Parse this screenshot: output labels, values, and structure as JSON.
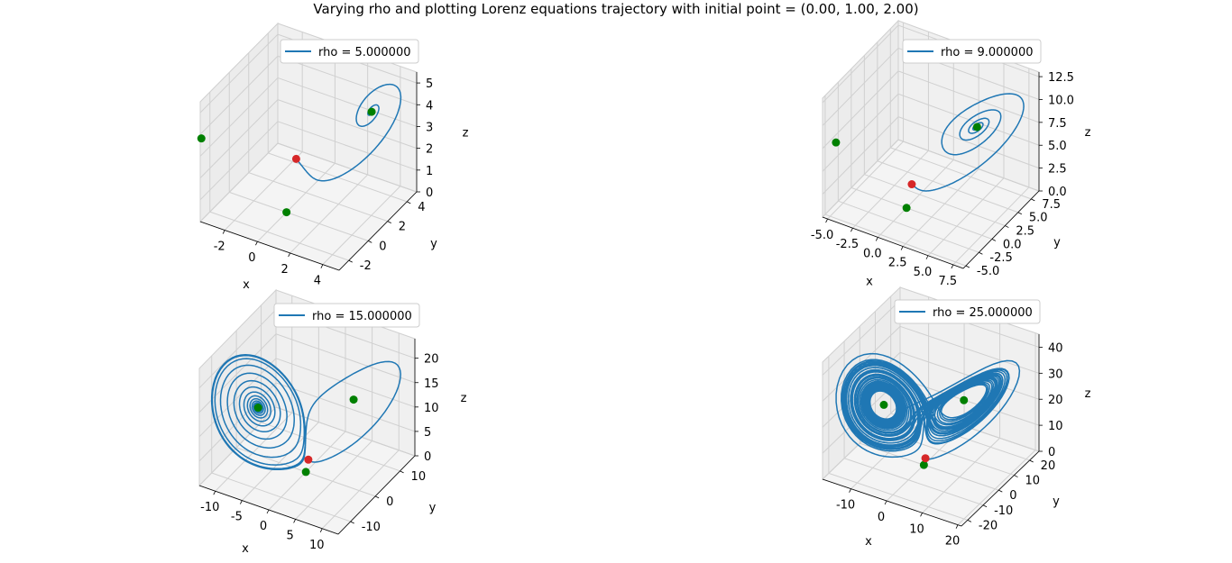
{
  "figure": {
    "title": "Varying rho and plotting Lorenz equations trajectory with initial point = (0.00, 1.00, 2.00)"
  },
  "colors": {
    "trajectory": "#1f77b4",
    "initial_point": "#d62728",
    "fixed_point": "#008000",
    "pane": "#f2f2f2",
    "grid": "#d0d0d0"
  },
  "chart_data": [
    {
      "type": "line",
      "projection": "3d",
      "legend": "rho = 5.000000",
      "legend_position": "top",
      "rho": 5,
      "xlabel": "x",
      "ylabel": "y",
      "zlabel": "z",
      "xlim": [
        -3.5,
        5
      ],
      "ylim": [
        -3,
        5
      ],
      "zlim": [
        0,
        5.5
      ],
      "xticks": [
        -2,
        0,
        2,
        4
      ],
      "yticks": [
        -2,
        0,
        2,
        4
      ],
      "zticks": [
        0,
        1,
        2,
        3,
        4,
        5
      ],
      "initial_point": [
        0,
        1,
        2
      ],
      "fixed_points": [
        [
          0,
          0,
          0
        ],
        [
          -3.27,
          -3.27,
          4
        ],
        [
          3.27,
          3.27,
          4
        ]
      ]
    },
    {
      "type": "line",
      "projection": "3d",
      "legend": "rho = 9.000000",
      "legend_position": "top",
      "rho": 9,
      "xlabel": "x",
      "ylabel": "y",
      "zlabel": "z",
      "xlim": [
        -5.5,
        8.5
      ],
      "ylim": [
        -5.5,
        9
      ],
      "zlim": [
        0,
        13
      ],
      "xticks": [
        "-5.0",
        "-2.5",
        "0.0",
        "2.5",
        "5.0",
        "7.5"
      ],
      "yticks": [
        "-5.0",
        "-2.5",
        "0.0",
        "2.5",
        "5.0",
        "7.5"
      ],
      "zticks": [
        "0.0",
        "2.5",
        "5.0",
        "7.5",
        "10.0",
        "12.5"
      ],
      "initial_point": [
        0,
        1,
        2
      ],
      "fixed_points": [
        [
          0,
          0,
          0
        ],
        [
          -4.62,
          -4.62,
          8
        ],
        [
          4.62,
          4.62,
          8
        ]
      ]
    },
    {
      "type": "line",
      "projection": "3d",
      "legend": "rho = 15.000000",
      "legend_position": "top",
      "rho": 15,
      "xlabel": "x",
      "ylabel": "y",
      "zlabel": "z",
      "xlim": [
        -13,
        13
      ],
      "ylim": [
        -15,
        16
      ],
      "zlim": [
        0,
        24
      ],
      "xticks": [
        -10,
        -5,
        0,
        5,
        10
      ],
      "yticks": [
        -10,
        0,
        10
      ],
      "zticks": [
        0,
        5,
        10,
        15,
        20
      ],
      "initial_point": [
        0,
        1,
        2
      ],
      "fixed_points": [
        [
          0,
          0,
          0
        ],
        [
          -6.11,
          -6.11,
          14
        ],
        [
          6.11,
          6.11,
          14
        ]
      ]
    },
    {
      "type": "line",
      "projection": "3d",
      "legend": "rho = 25.000000",
      "legend_position": "top",
      "rho": 25,
      "xlabel": "x",
      "ylabel": "y",
      "zlabel": "z",
      "xlim": [
        -18,
        21
      ],
      "ylim": [
        -24,
        26
      ],
      "zlim": [
        0,
        45
      ],
      "xticks": [
        -10,
        0,
        10,
        20
      ],
      "yticks": [
        -20,
        -10,
        0,
        10,
        20
      ],
      "zticks": [
        0,
        10,
        20,
        30,
        40
      ],
      "initial_point": [
        0,
        1,
        2
      ],
      "fixed_points": [
        [
          0,
          0,
          0
        ],
        [
          -7.83,
          -7.83,
          24
        ],
        [
          7.83,
          7.83,
          24
        ]
      ]
    }
  ]
}
